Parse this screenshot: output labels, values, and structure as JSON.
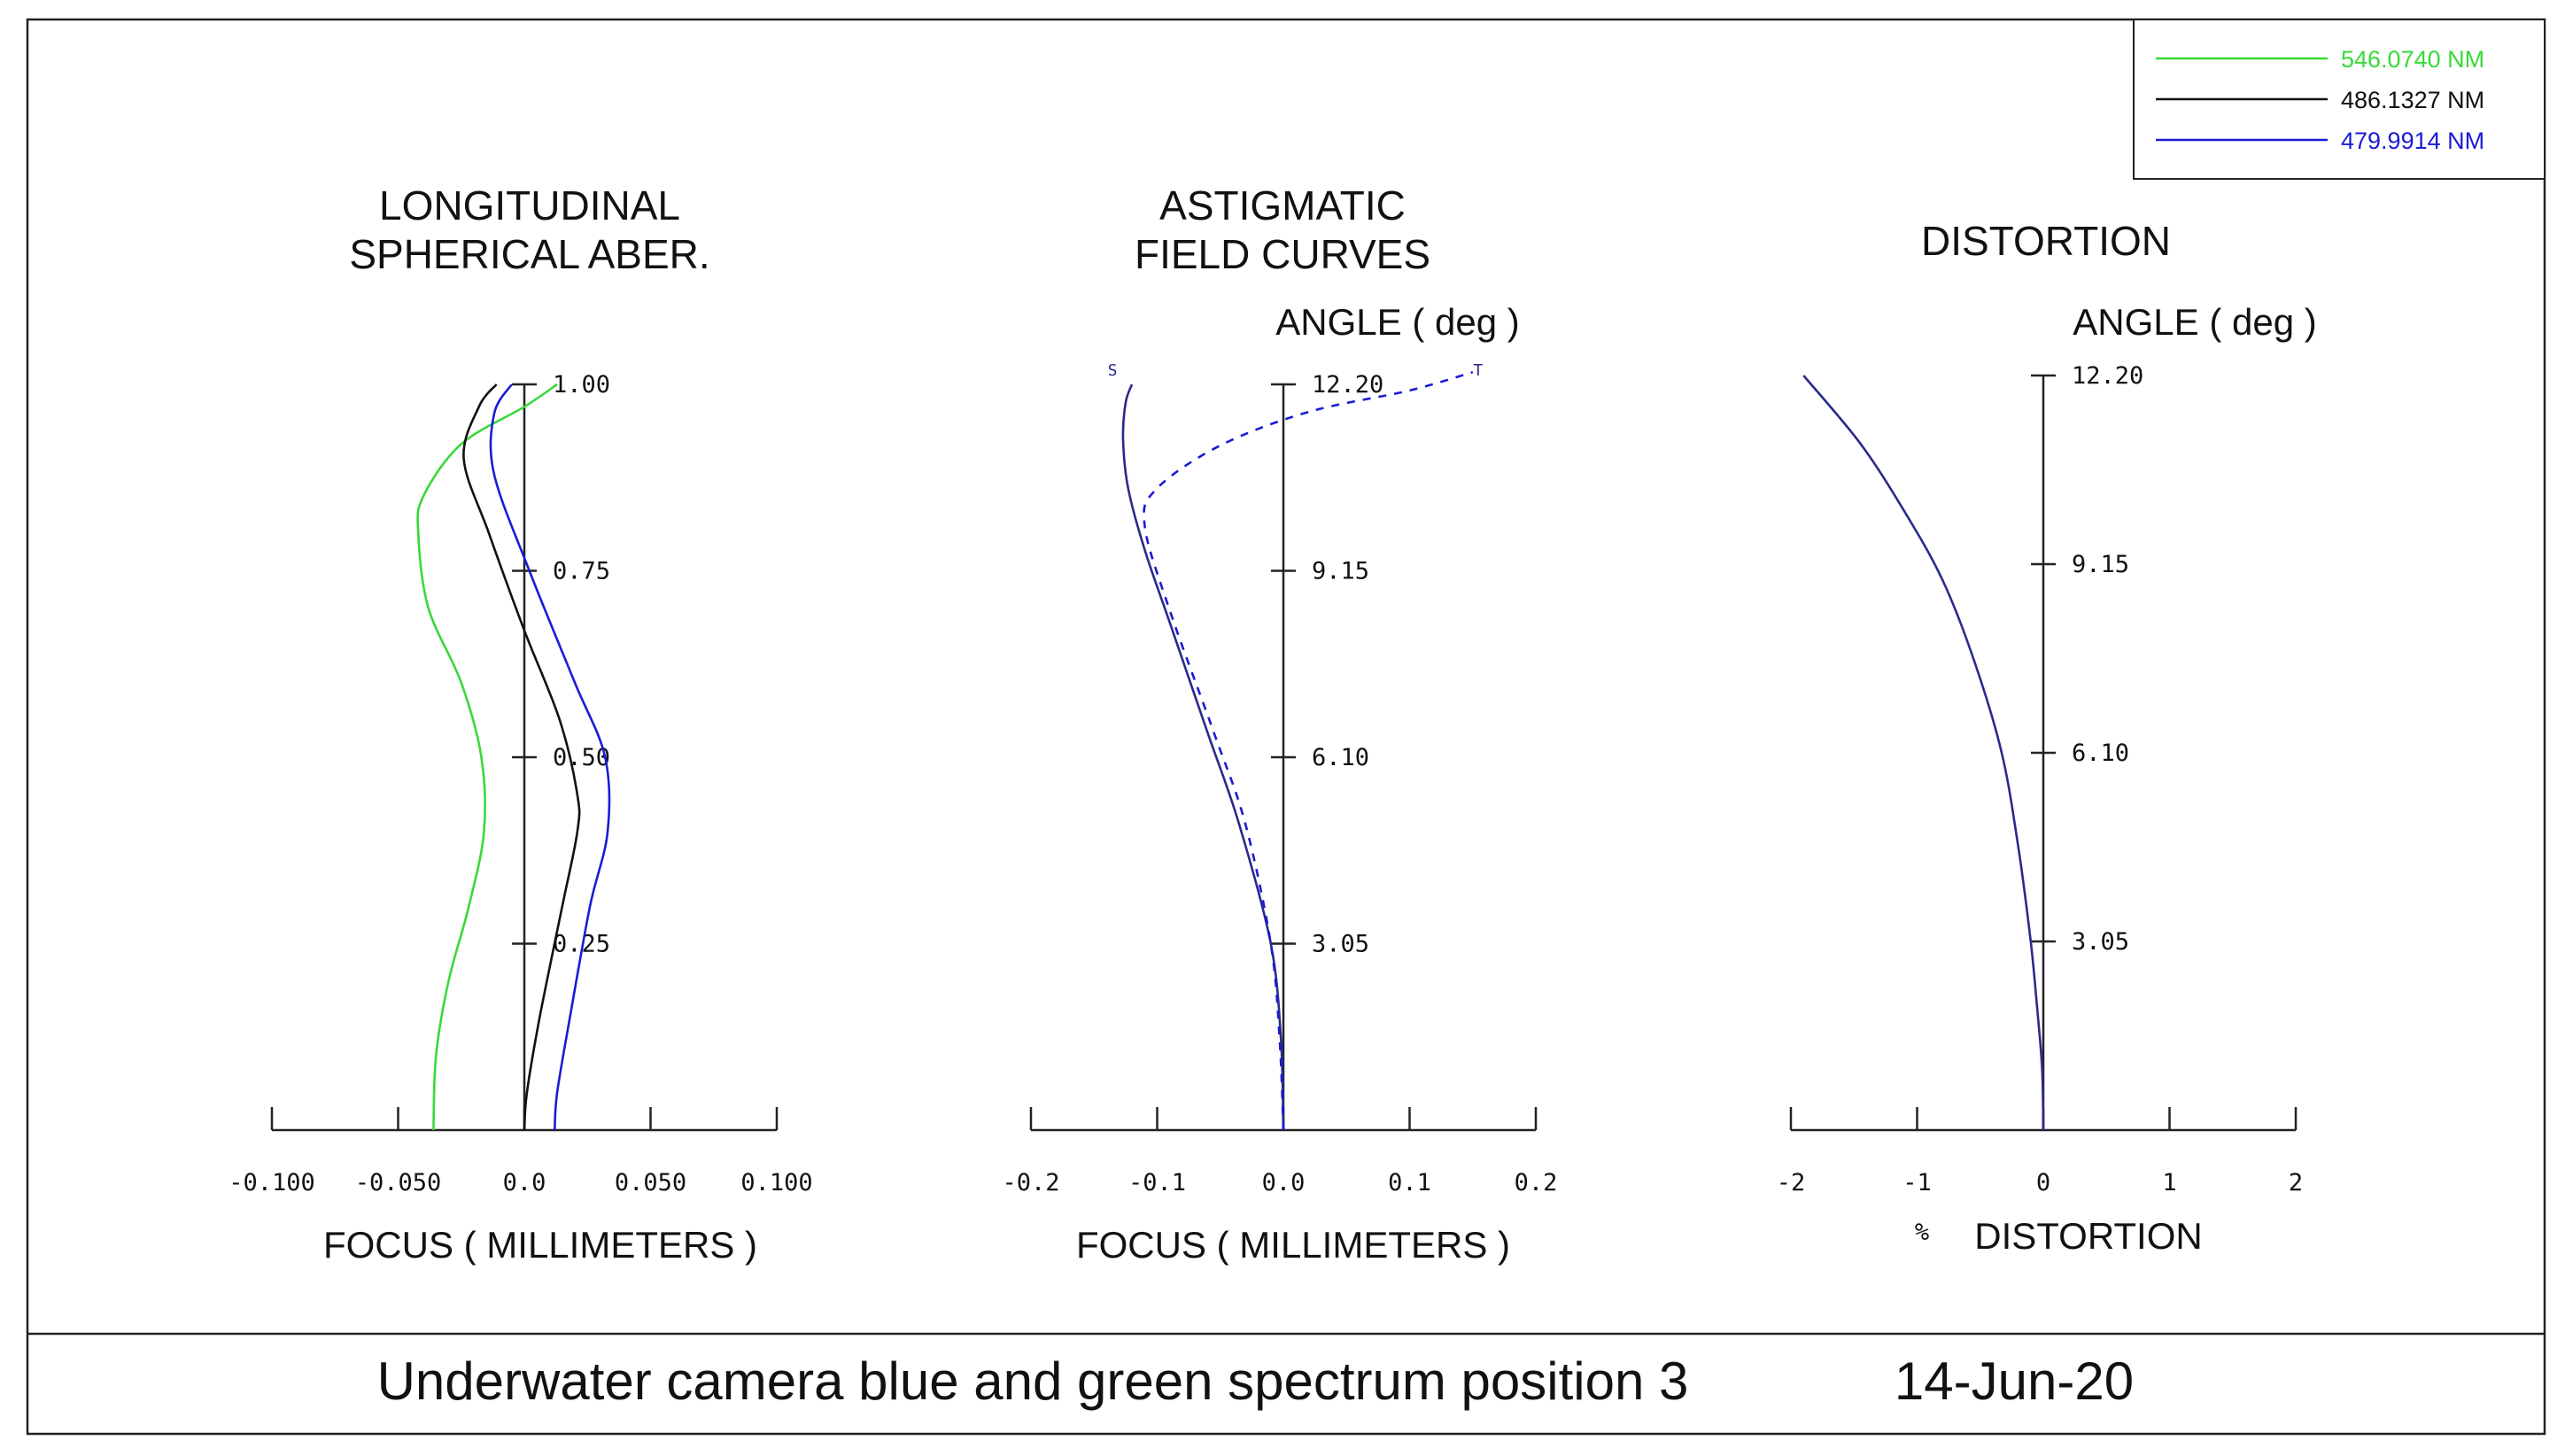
{
  "colors": {
    "green": "#39d939",
    "black": "#111111",
    "blue": "#1b1bd6",
    "navy": "#2a2a8c",
    "frame": "#222222"
  },
  "legend": {
    "entries": [
      {
        "label": "546.0740  NM",
        "color_key": "green"
      },
      {
        "label": "486.1327  NM",
        "color_key": "black"
      },
      {
        "label": "479.9914  NM",
        "color_key": "blue"
      }
    ]
  },
  "footer": {
    "title": "Underwater camera blue and green spectrum position 3",
    "date": "14-Jun-20"
  },
  "chart_data": [
    {
      "type": "line",
      "title": "LONGITUDINAL\nSPHERICAL ABER.",
      "xlabel": "FOCUS   ( MILLIMETERS )",
      "ylabel": "",
      "xlim": [
        -0.1,
        0.1
      ],
      "ylim": [
        0,
        1.0
      ],
      "x_ticks": [
        -0.1,
        -0.05,
        0.0,
        0.05,
        0.1
      ],
      "x_tick_labels": [
        "-0.100",
        "-0.050",
        "0.0",
        "0.050",
        "0.100"
      ],
      "y_ticks": [
        0.25,
        0.5,
        0.75,
        1.0
      ],
      "y_tick_labels": [
        "0.25",
        "0.50",
        "0.75",
        "1.00"
      ],
      "series": [
        {
          "name": "546.0740  NM",
          "color_key": "green",
          "style": "solid",
          "points": [
            [
              -0.036,
              0.0
            ],
            [
              -0.035,
              0.1
            ],
            [
              -0.03,
              0.2
            ],
            [
              -0.022,
              0.3
            ],
            [
              -0.016,
              0.4
            ],
            [
              -0.017,
              0.5
            ],
            [
              -0.025,
              0.6
            ],
            [
              -0.038,
              0.7
            ],
            [
              -0.042,
              0.8
            ],
            [
              -0.04,
              0.85
            ],
            [
              -0.025,
              0.92
            ],
            [
              0.0,
              0.97
            ],
            [
              0.013,
              1.0
            ]
          ]
        },
        {
          "name": "486.1327  NM",
          "color_key": "black",
          "style": "solid",
          "points": [
            [
              0.0,
              0.0
            ],
            [
              0.001,
              0.05
            ],
            [
              0.006,
              0.15
            ],
            [
              0.015,
              0.3
            ],
            [
              0.021,
              0.4
            ],
            [
              0.021,
              0.45
            ],
            [
              0.014,
              0.55
            ],
            [
              0.0,
              0.67
            ],
            [
              -0.014,
              0.8
            ],
            [
              -0.024,
              0.9
            ],
            [
              -0.018,
              0.97
            ],
            [
              -0.011,
              1.0
            ]
          ]
        },
        {
          "name": "479.9914  NM",
          "color_key": "blue",
          "style": "solid",
          "points": [
            [
              0.012,
              0.0
            ],
            [
              0.013,
              0.05
            ],
            [
              0.018,
              0.15
            ],
            [
              0.026,
              0.3
            ],
            [
              0.033,
              0.4
            ],
            [
              0.032,
              0.5
            ],
            [
              0.02,
              0.6
            ],
            [
              0.002,
              0.75
            ],
            [
              -0.012,
              0.88
            ],
            [
              -0.012,
              0.96
            ],
            [
              -0.005,
              1.0
            ]
          ]
        }
      ]
    },
    {
      "type": "line",
      "title": "ASTIGMATIC\nFIELD CURVES",
      "ylabel": "ANGLE ( deg )",
      "xlabel": "FOCUS   ( MILLIMETERS )",
      "xlim": [
        -0.2,
        0.2
      ],
      "ylim": [
        0,
        12.2
      ],
      "x_ticks": [
        -0.2,
        -0.1,
        0.0,
        0.1,
        0.2
      ],
      "x_tick_labels": [
        "-0.2",
        "-0.1",
        "0.0",
        "0.1",
        "0.2"
      ],
      "y_ticks": [
        3.05,
        6.1,
        9.15,
        12.2
      ],
      "y_tick_labels": [
        "3.05",
        "6.10",
        "9.15",
        "12.20"
      ],
      "curve_labels": {
        "sagittal": "S",
        "tangential": "T"
      },
      "series": [
        {
          "name": "S",
          "color_key": "navy",
          "style": "solid",
          "points": [
            [
              0.0,
              0.0
            ],
            [
              -0.002,
              1.5
            ],
            [
              -0.01,
              3.05
            ],
            [
              -0.035,
              5.0
            ],
            [
              -0.06,
              6.5
            ],
            [
              -0.09,
              8.3
            ],
            [
              -0.11,
              9.5
            ],
            [
              -0.123,
              10.5
            ],
            [
              -0.127,
              11.3
            ],
            [
              -0.125,
              11.9
            ],
            [
              -0.12,
              12.2
            ]
          ]
        },
        {
          "name": "T",
          "color_key": "blue",
          "style": "dashed",
          "points": [
            [
              0.0,
              0.0
            ],
            [
              -0.003,
              1.5
            ],
            [
              -0.01,
              3.05
            ],
            [
              -0.03,
              5.0
            ],
            [
              -0.055,
              6.5
            ],
            [
              -0.09,
              8.5
            ],
            [
              -0.11,
              9.9
            ],
            [
              -0.1,
              10.5
            ],
            [
              -0.05,
              11.2
            ],
            [
              0.02,
              11.75
            ],
            [
              0.1,
              12.1
            ],
            [
              0.15,
              12.4
            ]
          ]
        }
      ]
    },
    {
      "type": "line",
      "title": "DISTORTION",
      "ylabel": "ANGLE ( deg )",
      "xlabel": "DISTORTION",
      "x_unit_symbol": "%",
      "xlim": [
        -2,
        2
      ],
      "ylim": [
        0,
        12.2
      ],
      "x_ticks": [
        -2,
        -1,
        0,
        1,
        2
      ],
      "x_tick_labels": [
        "-2",
        "-1",
        "0",
        "1",
        "2"
      ],
      "y_ticks": [
        3.05,
        6.1,
        9.15,
        12.2
      ],
      "y_tick_labels": [
        "3.05",
        "6.10",
        "9.15",
        "12.20"
      ],
      "series": [
        {
          "name": "distortion",
          "color_key": "navy",
          "style": "solid",
          "points": [
            [
              0.0,
              0.0
            ],
            [
              -0.01,
              1.0
            ],
            [
              -0.05,
              2.0
            ],
            [
              -0.1,
              3.05
            ],
            [
              -0.2,
              4.6
            ],
            [
              -0.33,
              6.1
            ],
            [
              -0.55,
              7.6
            ],
            [
              -0.8,
              8.9
            ],
            [
              -1.1,
              10.0
            ],
            [
              -1.45,
              11.1
            ],
            [
              -1.9,
              12.2
            ]
          ]
        }
      ]
    }
  ]
}
